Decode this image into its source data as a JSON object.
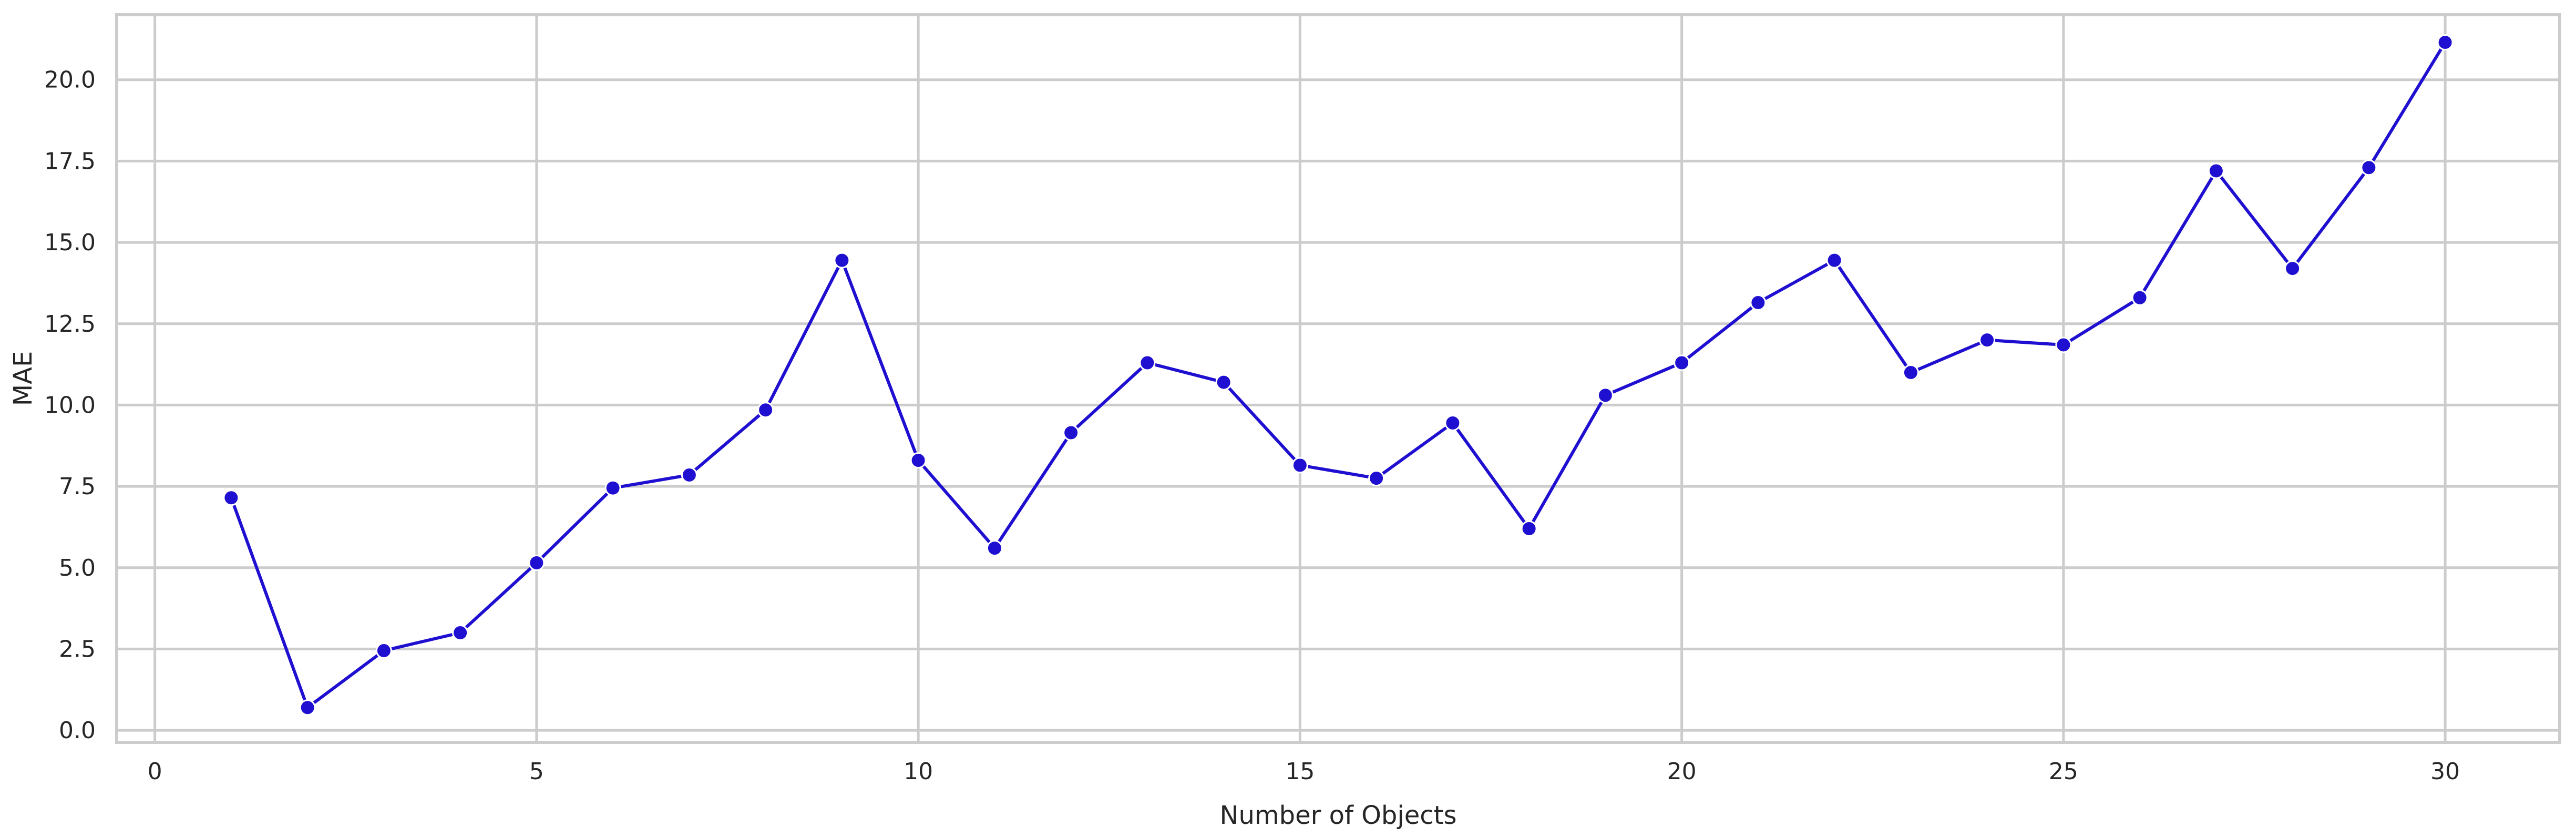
{
  "chart_data": {
    "type": "line",
    "title": "",
    "xlabel": "Number of Objects",
    "ylabel": "MAE",
    "xlim": [
      -0.5,
      31.5
    ],
    "ylim": [
      -0.37,
      22.0
    ],
    "grid": true,
    "legend": "none",
    "x_ticks": [
      0,
      5,
      10,
      15,
      20,
      25,
      30
    ],
    "x_tick_labels": [
      "0",
      "5",
      "10",
      "15",
      "20",
      "25",
      "30"
    ],
    "y_ticks": [
      0,
      2.5,
      5,
      7.5,
      10,
      12.5,
      15,
      17.5,
      20
    ],
    "y_tick_labels": [
      "0.0",
      "2.5",
      "5.0",
      "7.5",
      "10.0",
      "12.5",
      "15.0",
      "17.5",
      "20.0"
    ],
    "series": [
      {
        "color": "#1f0fd0",
        "x": [
          1,
          2,
          3,
          4,
          5,
          6,
          7,
          8,
          9,
          10,
          11,
          12,
          13,
          14,
          15,
          16,
          17,
          18,
          19,
          20,
          21,
          22,
          23,
          24,
          25,
          26,
          27,
          28,
          29,
          30
        ],
        "y": [
          7.15,
          0.7,
          2.45,
          3.0,
          5.15,
          7.45,
          7.85,
          9.85,
          14.45,
          8.3,
          5.6,
          9.15,
          11.3,
          10.7,
          8.15,
          7.75,
          9.45,
          6.2,
          10.3,
          11.3,
          13.15,
          14.45,
          11.0,
          12.0,
          11.85,
          13.3,
          17.2,
          14.2,
          17.3,
          21.15
        ]
      }
    ]
  }
}
